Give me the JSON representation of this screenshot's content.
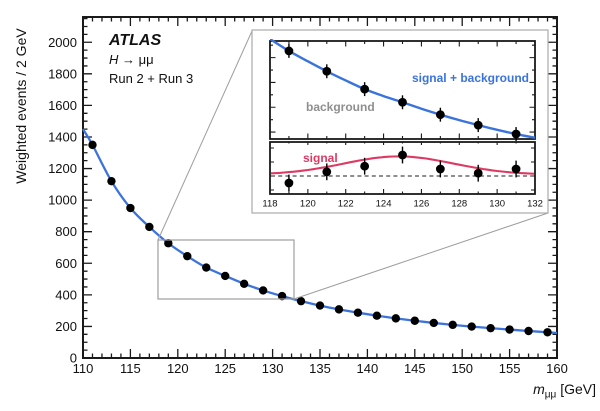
{
  "annotations": {
    "experiment": "ATLAS",
    "process_h": "H",
    "process_rest": " → μμ",
    "dataset": "Run 2 + Run 3"
  },
  "axes": {
    "y_title": "Weighted events / 2 GeV",
    "x_title_base": "m",
    "x_title_sub": "μμ",
    "x_title_unit": " [GeV]"
  },
  "colors": {
    "fit_blue": "#3b73dd",
    "signal_red": "#dd3a63",
    "background_label_gray": "#8f8f8f",
    "frame_black": "#1a1a1a",
    "box_gray": "#9e9e9e",
    "point_black": "#000000",
    "dashed_gray": "#4a4a4a"
  },
  "chart_data": {
    "type": "line",
    "title": "",
    "xlabel": "m_mumu [GeV]",
    "ylabel": "Weighted events / 2 GeV",
    "main": {
      "x_range": [
        110,
        160
      ],
      "y_range": [
        0,
        2160
      ],
      "x_tick_labels": [
        110,
        115,
        120,
        125,
        130,
        135,
        140,
        145,
        150,
        155,
        160
      ],
      "y_tick_labels": [
        0,
        200,
        400,
        600,
        800,
        1000,
        1200,
        1400,
        1600,
        1800,
        2000
      ],
      "x_minor_step": 1,
      "x_major_step": 5,
      "y_minor_step": 50,
      "y_major_step": 200,
      "points_x": [
        111,
        113,
        115,
        117,
        119,
        121,
        123,
        125,
        127,
        129,
        131,
        133,
        135,
        137,
        139,
        141,
        143,
        145,
        147,
        149,
        151,
        153,
        155,
        157,
        159
      ],
      "points_y": [
        1350,
        1120,
        950,
        830,
        727,
        645,
        573,
        520,
        470,
        428,
        392,
        360,
        332,
        308,
        287,
        268,
        251,
        236,
        222,
        210,
        199,
        189,
        180,
        171,
        163
      ],
      "curve_x": [
        110,
        111,
        113,
        115,
        117,
        119,
        121,
        123,
        125,
        127,
        129,
        131,
        133,
        135,
        137,
        139,
        141,
        143,
        145,
        147,
        149,
        151,
        153,
        155,
        157,
        159,
        160
      ],
      "curve_y": [
        1450,
        1350,
        1120,
        950,
        830,
        727,
        645,
        573,
        520,
        470,
        428,
        392,
        360,
        332,
        308,
        287,
        268,
        251,
        236,
        222,
        210,
        199,
        189,
        180,
        171,
        163,
        158
      ]
    },
    "zoom_region": {
      "x_range": [
        118,
        132
      ],
      "y_range": [
        375,
        750
      ]
    },
    "inset_top": {
      "curve_label": "signal + background",
      "points_label": "background",
      "x_range": [
        118,
        132
      ],
      "y_range": [
        372,
        767
      ],
      "points_x": [
        119,
        121,
        123,
        125,
        127,
        129,
        131
      ],
      "points_y": [
        727,
        645,
        573,
        520,
        470,
        428,
        392
      ],
      "point_err": 20,
      "curve_x": [
        118,
        119,
        120,
        121,
        122,
        123,
        124,
        125,
        126,
        127,
        128,
        129,
        130,
        131,
        132
      ],
      "curve_y": [
        775,
        727,
        685,
        645,
        608,
        573,
        545,
        520,
        494,
        470,
        448,
        428,
        409,
        392,
        377
      ]
    },
    "inset_bottom": {
      "label": "signal",
      "x_range": [
        118,
        132
      ],
      "zero_line": 0,
      "x_tick_labels": [
        118,
        120,
        122,
        124,
        126,
        128,
        130,
        132
      ],
      "points_x": [
        119,
        121,
        123,
        125,
        127,
        129,
        131
      ],
      "points_y": [
        -2.5,
        1.5,
        3.5,
        7.5,
        2.5,
        1.0,
        2.5
      ],
      "point_err": 3,
      "signal_curve": {
        "baseline": 0.5,
        "amplitude": 6.5,
        "mean": 124.8,
        "sigma": 2.9
      }
    }
  }
}
